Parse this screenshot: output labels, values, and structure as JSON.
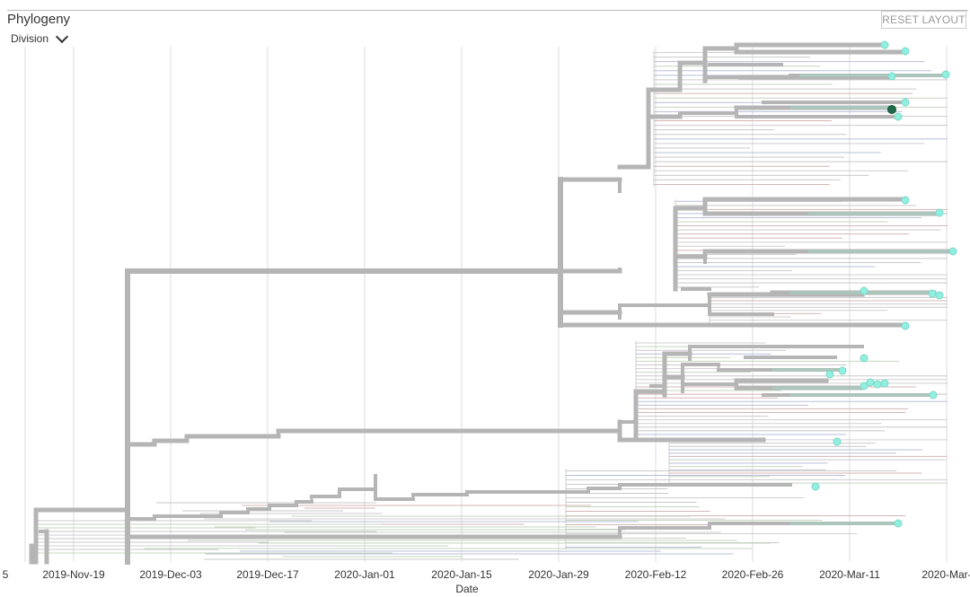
{
  "header": {
    "title": "Phylogeny",
    "color_by_label": "Division",
    "reset_label": "RESET LAYOUT"
  },
  "chart_data": {
    "type": "phylogenetic-tree",
    "xlabel": "Date",
    "ticks": [
      "2019-Nov-19",
      "2019-Dec-03",
      "2019-Dec-17",
      "2020-Jan-01",
      "2020-Jan-15",
      "2020-Jan-29",
      "2020-Feb-12",
      "2020-Feb-26",
      "2020-Mar-11",
      "2020-Mar-"
    ],
    "grid": true,
    "colors": {
      "branch": "#b5b5b5",
      "tip": "#8ff0e0",
      "selected_tip": "#1f6b4a",
      "grid": "#dddddd"
    },
    "highlighted_tips": 22,
    "selected_tips": 1
  }
}
